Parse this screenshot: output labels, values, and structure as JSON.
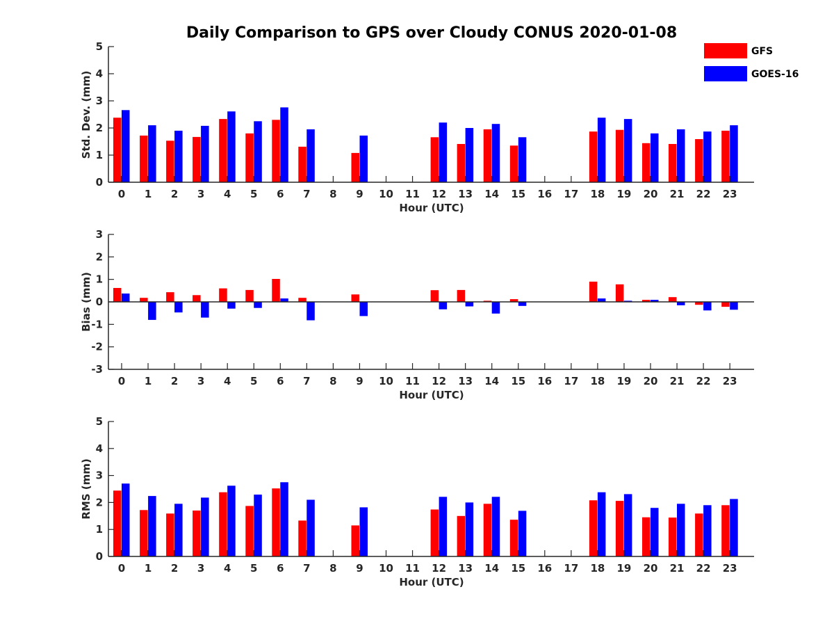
{
  "title": "Daily Comparison to GPS over Cloudy CONUS 2020-01-08",
  "legend": [
    {
      "label": "GFS",
      "color": "#ff0000"
    },
    {
      "label": "GOES-16",
      "color": "#0000ff"
    }
  ],
  "chart_data": [
    {
      "type": "bar",
      "xlabel": "Hour (UTC)",
      "ylabel": "Std. Dev. (mm)",
      "ylim": [
        0,
        5
      ],
      "yticks": [
        "0",
        "1",
        "2",
        "3",
        "4",
        "5"
      ],
      "categories": [
        "0",
        "1",
        "2",
        "3",
        "4",
        "5",
        "6",
        "7",
        "8",
        "9",
        "10",
        "11",
        "12",
        "13",
        "14",
        "15",
        "16",
        "17",
        "18",
        "19",
        "20",
        "21",
        "22",
        "23"
      ],
      "series": [
        {
          "name": "GFS",
          "values": [
            2.38,
            1.72,
            1.53,
            1.67,
            2.33,
            1.8,
            2.3,
            1.31,
            null,
            1.08,
            null,
            null,
            1.66,
            1.41,
            1.95,
            1.35,
            null,
            null,
            1.87,
            1.93,
            1.44,
            1.41,
            1.59,
            1.9
          ]
        },
        {
          "name": "GOES-16",
          "values": [
            2.66,
            2.1,
            1.9,
            2.08,
            2.61,
            2.25,
            2.76,
            1.95,
            null,
            1.72,
            null,
            null,
            2.2,
            2.0,
            2.15,
            1.66,
            null,
            null,
            2.38,
            2.33,
            1.8,
            1.95,
            1.87,
            2.1
          ]
        }
      ]
    },
    {
      "type": "bar",
      "xlabel": "Hour (UTC)",
      "ylabel": "Bias (mm)",
      "ylim": [
        -3,
        3
      ],
      "yticks": [
        "-3",
        "-2",
        "-1",
        "0",
        "1",
        "2",
        "3"
      ],
      "categories": [
        "0",
        "1",
        "2",
        "3",
        "4",
        "5",
        "6",
        "7",
        "8",
        "9",
        "10",
        "11",
        "12",
        "13",
        "14",
        "15",
        "16",
        "17",
        "18",
        "19",
        "20",
        "21",
        "22",
        "23"
      ],
      "series": [
        {
          "name": "GFS",
          "values": [
            0.62,
            0.18,
            0.43,
            0.3,
            0.6,
            0.53,
            1.02,
            0.18,
            null,
            0.33,
            null,
            null,
            0.52,
            0.53,
            0.05,
            0.12,
            null,
            null,
            0.9,
            0.78,
            0.09,
            0.21,
            -0.13,
            -0.22
          ]
        },
        {
          "name": "GOES-16",
          "values": [
            0.37,
            -0.8,
            -0.47,
            -0.7,
            -0.3,
            -0.27,
            0.15,
            -0.82,
            null,
            -0.63,
            null,
            null,
            -0.33,
            -0.2,
            -0.52,
            -0.18,
            null,
            null,
            0.15,
            0.05,
            0.09,
            -0.15,
            -0.38,
            -0.35
          ]
        }
      ]
    },
    {
      "type": "bar",
      "xlabel": "Hour (UTC)",
      "ylabel": "RMS (mm)",
      "ylim": [
        0,
        5
      ],
      "yticks": [
        "0",
        "1",
        "2",
        "3",
        "4",
        "5"
      ],
      "categories": [
        "0",
        "1",
        "2",
        "3",
        "4",
        "5",
        "6",
        "7",
        "8",
        "9",
        "10",
        "11",
        "12",
        "13",
        "14",
        "15",
        "16",
        "17",
        "18",
        "19",
        "20",
        "21",
        "22",
        "23"
      ],
      "series": [
        {
          "name": "GFS",
          "values": [
            2.44,
            1.72,
            1.59,
            1.7,
            2.38,
            1.87,
            2.52,
            1.33,
            null,
            1.15,
            null,
            null,
            1.74,
            1.5,
            1.95,
            1.36,
            null,
            null,
            2.08,
            2.06,
            1.45,
            1.44,
            1.59,
            1.9
          ]
        },
        {
          "name": "GOES-16",
          "values": [
            2.7,
            2.24,
            1.95,
            2.18,
            2.62,
            2.29,
            2.75,
            2.1,
            null,
            1.82,
            null,
            null,
            2.21,
            2.0,
            2.21,
            1.69,
            null,
            null,
            2.38,
            2.31,
            1.8,
            1.95,
            1.9,
            2.13
          ]
        }
      ]
    }
  ]
}
